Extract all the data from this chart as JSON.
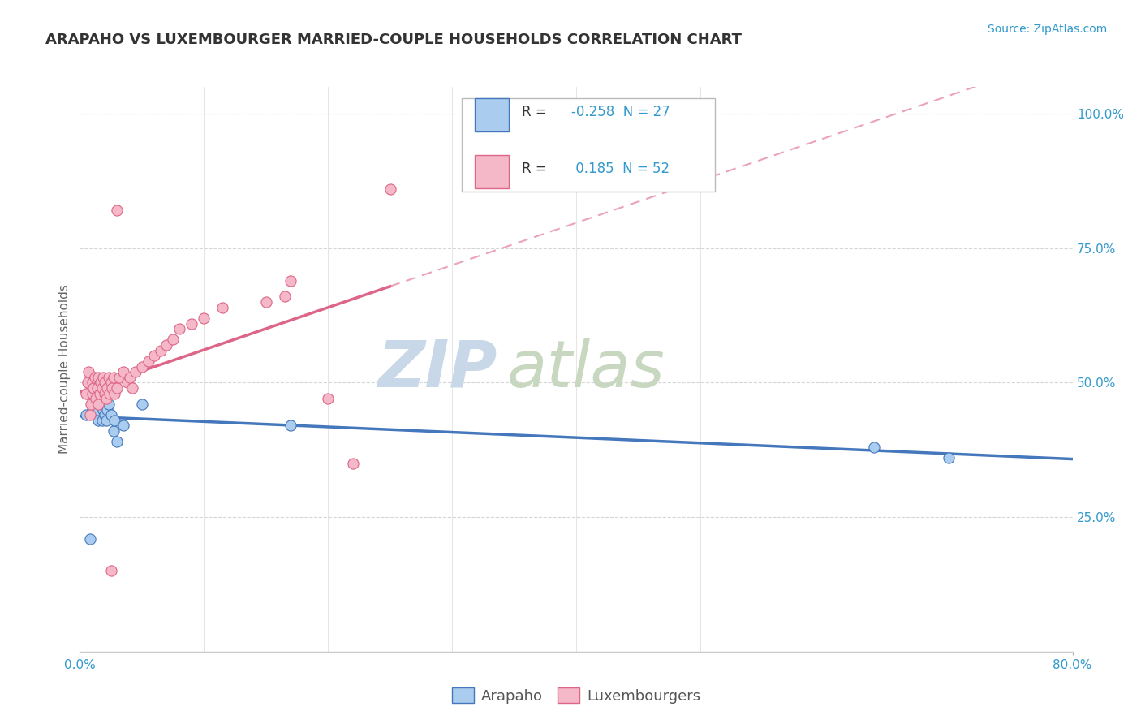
{
  "title": "ARAPAHO VS LUXEMBOURGER MARRIED-COUPLE HOUSEHOLDS CORRELATION CHART",
  "source_text": "Source: ZipAtlas.com",
  "ylabel": "Married-couple Households",
  "xlim": [
    0.0,
    0.8
  ],
  "ylim": [
    0.0,
    1.05
  ],
  "ytick_labels": [
    "",
    "25.0%",
    "50.0%",
    "75.0%",
    "100.0%"
  ],
  "ytick_values": [
    0.0,
    0.25,
    0.5,
    0.75,
    1.0
  ],
  "legend_R_arapaho": "-0.258",
  "legend_N_arapaho": "27",
  "legend_R_luxembourger": "0.185",
  "legend_N_luxembourger": "52",
  "arapaho_color": "#aaccee",
  "luxembourger_color": "#f5b8c8",
  "trendline_arapaho_color": "#4477bb",
  "trendline_luxembourger_color": "#dd6688",
  "background_color": "#ffffff",
  "grid_color": "#cccccc",
  "title_fontsize": 13,
  "axis_label_fontsize": 11,
  "tick_fontsize": 11,
  "legend_fontsize": 13,
  "source_fontsize": 10,
  "arapaho_x": [
    0.005,
    0.008,
    0.01,
    0.01,
    0.012,
    0.013,
    0.014,
    0.015,
    0.015,
    0.017,
    0.018,
    0.019,
    0.02,
    0.02,
    0.021,
    0.022,
    0.023,
    0.024,
    0.025,
    0.027,
    0.028,
    0.03,
    0.035,
    0.05,
    0.17,
    0.64,
    0.7
  ],
  "arapaho_y": [
    0.44,
    0.21,
    0.45,
    0.47,
    0.48,
    0.44,
    0.46,
    0.43,
    0.45,
    0.47,
    0.43,
    0.45,
    0.44,
    0.47,
    0.43,
    0.45,
    0.46,
    0.48,
    0.44,
    0.41,
    0.43,
    0.39,
    0.42,
    0.46,
    0.42,
    0.38,
    0.36
  ],
  "luxembourger_x": [
    0.005,
    0.006,
    0.007,
    0.008,
    0.009,
    0.01,
    0.01,
    0.011,
    0.012,
    0.013,
    0.014,
    0.015,
    0.015,
    0.016,
    0.017,
    0.018,
    0.019,
    0.02,
    0.02,
    0.021,
    0.022,
    0.023,
    0.024,
    0.025,
    0.026,
    0.027,
    0.028,
    0.03,
    0.032,
    0.035,
    0.038,
    0.04,
    0.042,
    0.045,
    0.05,
    0.055,
    0.06,
    0.065,
    0.07,
    0.075,
    0.08,
    0.09,
    0.1,
    0.115,
    0.15,
    0.165,
    0.17,
    0.2,
    0.22,
    0.25,
    0.03,
    0.025
  ],
  "luxembourger_y": [
    0.48,
    0.5,
    0.52,
    0.44,
    0.46,
    0.48,
    0.5,
    0.49,
    0.51,
    0.47,
    0.49,
    0.51,
    0.46,
    0.48,
    0.5,
    0.49,
    0.51,
    0.48,
    0.5,
    0.47,
    0.49,
    0.51,
    0.48,
    0.5,
    0.49,
    0.51,
    0.48,
    0.49,
    0.51,
    0.52,
    0.5,
    0.51,
    0.49,
    0.52,
    0.53,
    0.54,
    0.55,
    0.56,
    0.57,
    0.58,
    0.6,
    0.61,
    0.62,
    0.64,
    0.65,
    0.66,
    0.69,
    0.47,
    0.35,
    0.86,
    0.82,
    0.15
  ]
}
